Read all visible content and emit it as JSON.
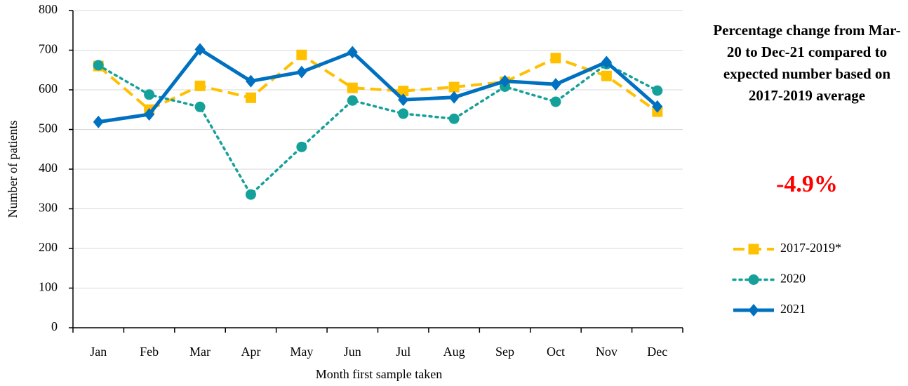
{
  "chart_data": {
    "type": "line",
    "x_label": "Month first sample taken",
    "y_label": "Number of patients",
    "categories": [
      "Jan",
      "Feb",
      "Mar",
      "Apr",
      "May",
      "Jun",
      "Jul",
      "Aug",
      "Sep",
      "Oct",
      "Nov",
      "Dec"
    ],
    "series": [
      {
        "name": "2017-2019*",
        "color": "#FFC000",
        "line_style": "dashed",
        "marker": "square",
        "values": [
          660,
          550,
          610,
          580,
          688,
          605,
          597,
          607,
          620,
          680,
          635,
          545
        ]
      },
      {
        "name": "2020",
        "color": "#16A09A",
        "line_style": "dotted",
        "marker": "circle",
        "values": [
          662,
          588,
          557,
          336,
          456,
          573,
          540,
          527,
          608,
          570,
          665,
          598
        ]
      },
      {
        "name": "2021",
        "color": "#0070C0",
        "line_style": "solid",
        "marker": "diamond",
        "values": [
          519,
          538,
          702,
          622,
          645,
          695,
          575,
          581,
          622,
          614,
          670,
          558
        ]
      }
    ],
    "ylim": [
      0,
      800
    ],
    "yticks": [
      0,
      100,
      200,
      300,
      400,
      500,
      600,
      700,
      800
    ],
    "grid": true,
    "legend": "right",
    "annotation": {
      "text": "Percentage change from Mar-20 to Dec-21 compared to expected number based on 2017-2019 average",
      "value": "-4.9%"
    }
  }
}
